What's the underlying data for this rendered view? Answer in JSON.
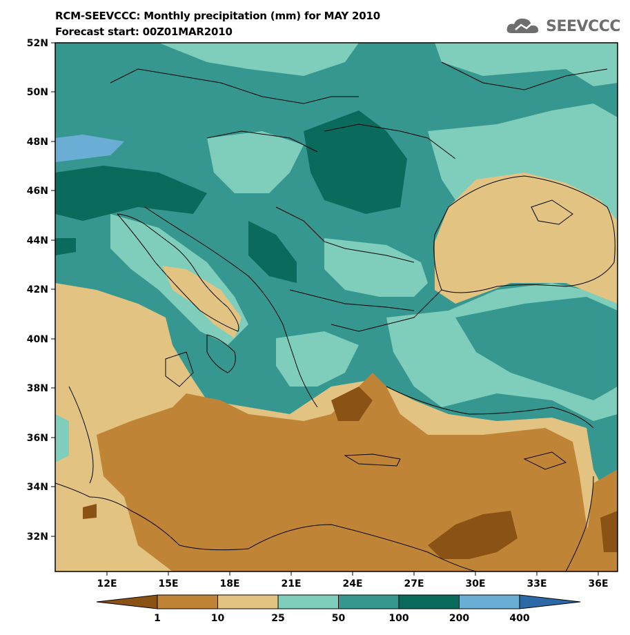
{
  "title_line1": "RCM-SEEVCCC: Monthly precipitation (mm) for MAY 2010",
  "title_line2": "Forecast start: 00Z01MAR2010",
  "logo_text": "SEEVCCC",
  "lat_labels": [
    "52N",
    "50N",
    "48N",
    "46N",
    "44N",
    "42N",
    "40N",
    "38N",
    "36N",
    "34N",
    "32N"
  ],
  "lon_labels": [
    "12E",
    "15E",
    "18E",
    "21E",
    "24E",
    "27E",
    "30E",
    "33E",
    "36E"
  ],
  "colorbar": {
    "thresholds": [
      "1",
      "10",
      "25",
      "50",
      "100",
      "200",
      "400"
    ],
    "colors": [
      "#8a5214",
      "#c08437",
      "#e2c382",
      "#7fcdbb",
      "#35978f",
      "#0a6b5d",
      "#6aaed6",
      "#2b6aa6"
    ]
  }
}
